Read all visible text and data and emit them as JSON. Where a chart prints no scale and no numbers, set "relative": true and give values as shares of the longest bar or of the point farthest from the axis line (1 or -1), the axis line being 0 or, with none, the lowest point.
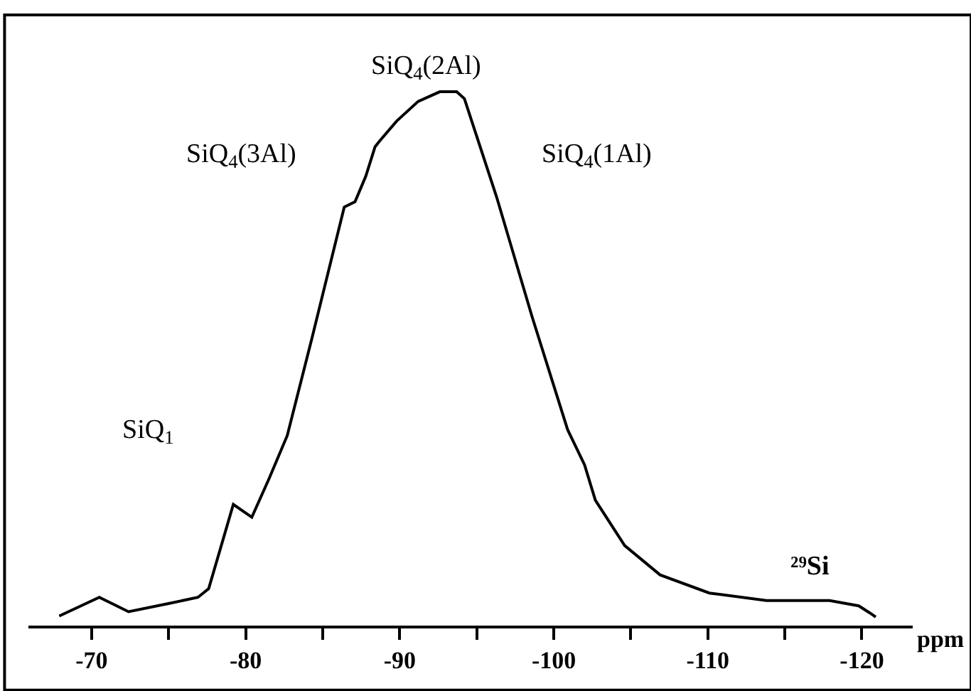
{
  "chart_data": {
    "type": "line",
    "relative": true,
    "xlabel": "ppm",
    "x": [
      -67.9,
      -70.5,
      -72.4,
      -75.1,
      -76.9,
      -77.6,
      -79.2,
      -80.4,
      -81.5,
      -82.7,
      -84.3,
      -86.4,
      -87.1,
      -87.8,
      -88.4,
      -88.7,
      -89.8,
      -91.2,
      -92.6,
      -93.7,
      -94.2,
      -96.3,
      -98.6,
      -100.9,
      -102.0,
      -102.7,
      -104.6,
      -106.9,
      -110.1,
      -113.8,
      -117.9,
      -119.8,
      -120.5,
      -120.9
    ],
    "series": [
      {
        "color": "#000000",
        "values": [
          0.018,
          0.053,
          0.026,
          0.042,
          0.053,
          0.069,
          0.227,
          0.203,
          0.274,
          0.356,
          0.538,
          0.784,
          0.794,
          0.842,
          0.897,
          0.908,
          0.945,
          0.982,
          1.0,
          1.0,
          0.987,
          0.802,
          0.578,
          0.367,
          0.301,
          0.235,
          0.15,
          0.095,
          0.061,
          0.047,
          0.047,
          0.037,
          0.024,
          0.016
        ]
      }
    ],
    "xlim": [
      -65.9,
      -123.3
    ],
    "xticks": [
      -70,
      {
        "value": -75,
        "label": null
      },
      -80,
      {
        "value": -85,
        "label": null
      },
      -90,
      {
        "value": -95,
        "label": null
      },
      -100,
      {
        "value": -105,
        "label": null
      },
      -110,
      {
        "value": -115,
        "label": null
      },
      -120
    ],
    "annotations": [
      "SiQ$_{1}$",
      "SiQ$_{4}$(3Al)",
      "SiQ$_{4}$(2Al)",
      "SiQ$_{4}$(1Al)",
      "²⁹Si"
    ],
    "marker": "none",
    "line_style": "solid"
  }
}
